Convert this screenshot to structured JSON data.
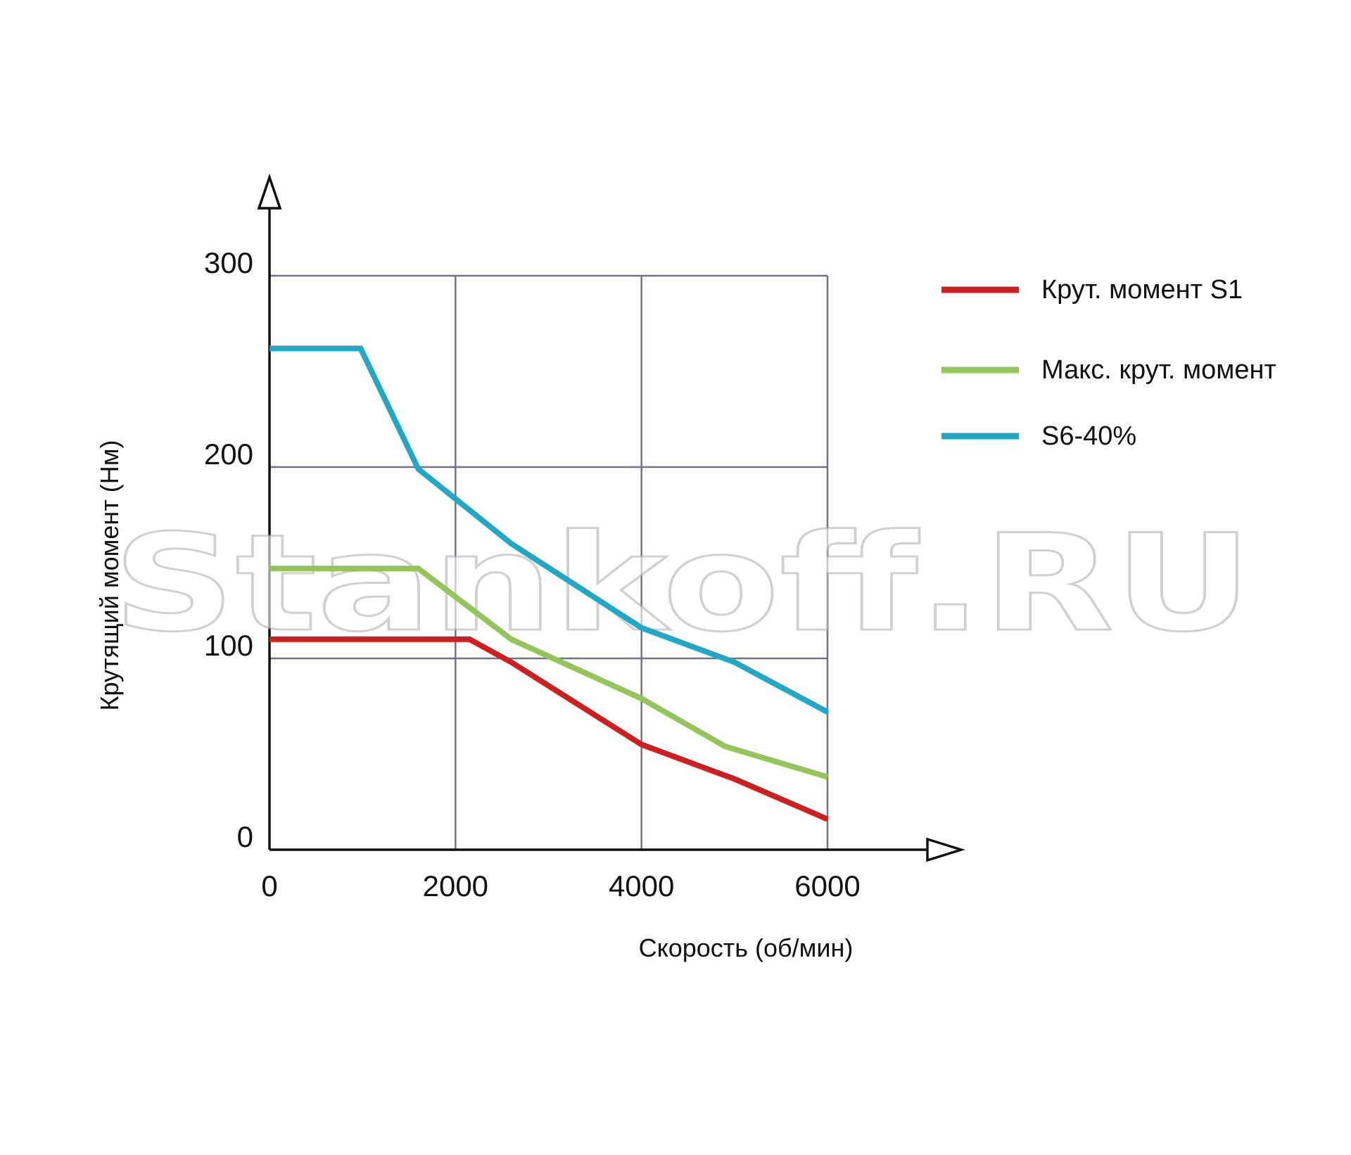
{
  "watermark": "Stankoff.RU",
  "chart_data": {
    "type": "line",
    "xlabel": "Скорость (об/мин)",
    "ylabel": "Крутящий момент (Нм)",
    "xlim": [
      0,
      6000
    ],
    "ylim": [
      0,
      300
    ],
    "x_ticks": [
      "0",
      "2000",
      "4000",
      "6000"
    ],
    "y_ticks": [
      "0",
      "100",
      "200",
      "300"
    ],
    "grid": true,
    "legend_position": "right",
    "series": [
      {
        "name": "Крут. момент S1",
        "color": "#cc2020",
        "points": [
          [
            0,
            110
          ],
          [
            2150,
            110
          ],
          [
            2600,
            98
          ],
          [
            4000,
            55
          ],
          [
            5000,
            37
          ],
          [
            6000,
            16
          ]
        ]
      },
      {
        "name": "Макс. крут. момент",
        "color": "#94c55a",
        "points": [
          [
            0,
            147
          ],
          [
            1600,
            147
          ],
          [
            2600,
            110
          ],
          [
            4000,
            79
          ],
          [
            4900,
            54
          ],
          [
            6000,
            38
          ]
        ]
      },
      {
        "name": "S6-40%",
        "color": "#22a8c4",
        "points": [
          [
            0,
            262
          ],
          [
            980,
            262
          ],
          [
            1600,
            199
          ],
          [
            2600,
            160
          ],
          [
            4000,
            116
          ],
          [
            5000,
            98
          ],
          [
            6000,
            72
          ]
        ]
      }
    ]
  }
}
